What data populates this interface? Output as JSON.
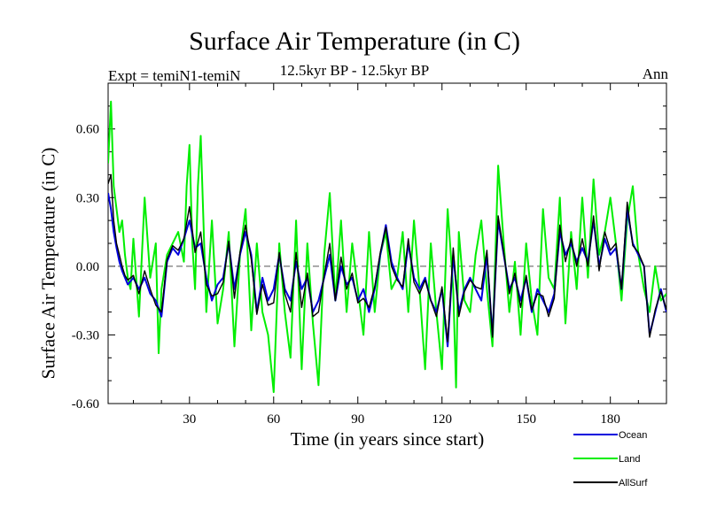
{
  "header": {
    "title": "Surface Air Temperature (in C)",
    "subtitle": "12.5kyr BP - 12.5kyr BP",
    "expt": "Expt = temiN1-temiN",
    "season": "Ann"
  },
  "chart_data": {
    "type": "line",
    "title": "Surface Air Temperature (in C)",
    "xlabel": "Time (in years since start)",
    "ylabel": "Surface Air Temperature (in C)",
    "xlim": [
      1,
      200
    ],
    "ylim": [
      -0.6,
      0.8
    ],
    "xticks": [
      30,
      60,
      90,
      120,
      150,
      180
    ],
    "xtick_labels": [
      "30",
      "60",
      "90",
      "120",
      "150",
      "180"
    ],
    "yticks": [
      -0.6,
      -0.3,
      0.0,
      0.3,
      0.6
    ],
    "ytick_labels": [
      "-0.60",
      "-0.30",
      "0.00",
      "0.30",
      "0.60"
    ],
    "zero_line": true,
    "legend_position": "bottom-right, below plot",
    "series": [
      {
        "name": "Land",
        "color": "#00ee00",
        "x": [
          1,
          2,
          3,
          4,
          5,
          6,
          7,
          8,
          9,
          10,
          12,
          14,
          16,
          18,
          19,
          20,
          22,
          24,
          26,
          28,
          29,
          30,
          31,
          32,
          33,
          34,
          36,
          38,
          40,
          42,
          44,
          46,
          48,
          50,
          52,
          54,
          56,
          58,
          60,
          62,
          64,
          66,
          68,
          70,
          72,
          74,
          76,
          78,
          80,
          82,
          84,
          86,
          88,
          90,
          92,
          94,
          96,
          98,
          100,
          102,
          104,
          106,
          108,
          110,
          112,
          114,
          116,
          118,
          120,
          122,
          124,
          125,
          126,
          128,
          130,
          132,
          134,
          136,
          138,
          140,
          142,
          144,
          146,
          148,
          150,
          152,
          154,
          156,
          158,
          160,
          162,
          164,
          166,
          168,
          170,
          172,
          174,
          176,
          178,
          180,
          182,
          184,
          186,
          188,
          190,
          192,
          194,
          196,
          198,
          200
        ],
        "values": [
          0.45,
          0.72,
          0.35,
          0.25,
          0.15,
          0.2,
          0.05,
          -0.05,
          -0.1,
          0.12,
          -0.22,
          0.3,
          -0.05,
          0.1,
          -0.38,
          -0.1,
          0.05,
          0.1,
          0.15,
          0.02,
          0.35,
          0.53,
          0.1,
          -0.1,
          0.35,
          0.57,
          -0.2,
          0.2,
          -0.25,
          -0.1,
          0.15,
          -0.35,
          0.05,
          0.25,
          -0.28,
          0.1,
          -0.2,
          -0.3,
          -0.55,
          0.1,
          -0.2,
          -0.4,
          0.2,
          -0.45,
          0.1,
          -0.25,
          -0.52,
          0.05,
          0.32,
          -0.15,
          0.2,
          -0.2,
          0.1,
          -0.1,
          -0.3,
          0.15,
          -0.2,
          0.05,
          0.15,
          -0.1,
          -0.05,
          0.15,
          -0.2,
          0.2,
          -0.1,
          -0.45,
          0.1,
          -0.2,
          -0.45,
          0.25,
          -0.1,
          -0.53,
          0.15,
          -0.15,
          -0.2,
          0.05,
          0.2,
          -0.1,
          -0.35,
          0.44,
          0.1,
          -0.2,
          0.02,
          -0.3,
          0.1,
          -0.15,
          -0.3,
          0.25,
          -0.05,
          -0.1,
          0.3,
          -0.25,
          0.15,
          -0.1,
          0.3,
          -0.05,
          0.38,
          0.05,
          0.15,
          0.3,
          0.1,
          -0.15,
          0.2,
          0.35,
          0.05,
          -0.1,
          -0.2,
          0.0,
          -0.15,
          -0.12
        ]
      },
      {
        "name": "Ocean",
        "color": "#0000dd",
        "x": [
          1,
          2,
          3,
          4,
          5,
          6,
          7,
          8,
          10,
          12,
          14,
          16,
          18,
          20,
          22,
          24,
          26,
          28,
          30,
          32,
          34,
          36,
          38,
          40,
          42,
          44,
          46,
          48,
          50,
          52,
          54,
          56,
          58,
          60,
          62,
          64,
          66,
          68,
          70,
          72,
          74,
          76,
          78,
          80,
          82,
          84,
          86,
          88,
          90,
          92,
          94,
          96,
          98,
          100,
          102,
          104,
          106,
          108,
          110,
          112,
          114,
          116,
          118,
          120,
          122,
          124,
          126,
          128,
          130,
          132,
          134,
          136,
          138,
          140,
          142,
          144,
          146,
          148,
          150,
          152,
          154,
          156,
          158,
          160,
          162,
          164,
          166,
          168,
          170,
          172,
          174,
          176,
          178,
          180,
          182,
          184,
          186,
          188,
          190,
          192,
          194,
          196,
          198,
          200
        ],
        "values": [
          0.32,
          0.25,
          0.15,
          0.08,
          0.02,
          -0.02,
          -0.05,
          -0.08,
          -0.05,
          -0.1,
          -0.05,
          -0.12,
          -0.15,
          -0.22,
          0.02,
          0.08,
          0.05,
          0.12,
          0.2,
          0.08,
          0.1,
          -0.05,
          -0.15,
          -0.08,
          -0.05,
          0.1,
          -0.1,
          0.05,
          0.15,
          0.05,
          -0.2,
          -0.05,
          -0.15,
          -0.1,
          0.05,
          -0.1,
          -0.15,
          0.02,
          -0.1,
          -0.05,
          -0.2,
          -0.15,
          -0.05,
          0.05,
          -0.15,
          0.0,
          -0.08,
          -0.05,
          -0.15,
          -0.1,
          -0.2,
          -0.1,
          0.05,
          0.18,
          0.02,
          -0.05,
          -0.1,
          0.1,
          -0.05,
          -0.1,
          -0.05,
          -0.15,
          -0.2,
          -0.1,
          -0.35,
          0.05,
          -0.2,
          -0.1,
          -0.05,
          -0.1,
          -0.15,
          0.05,
          -0.3,
          0.2,
          0.05,
          -0.1,
          -0.05,
          -0.15,
          -0.05,
          -0.2,
          -0.1,
          -0.15,
          -0.2,
          -0.12,
          0.15,
          0.05,
          0.1,
          0.02,
          0.08,
          0.02,
          0.2,
          0.0,
          0.12,
          0.05,
          0.08,
          -0.1,
          0.25,
          0.1,
          0.05,
          0.0,
          -0.3,
          -0.2,
          -0.1,
          -0.2
        ]
      },
      {
        "name": "AllSurf",
        "color": "#000000",
        "x": [
          1,
          2,
          3,
          4,
          5,
          6,
          7,
          8,
          10,
          12,
          14,
          16,
          18,
          20,
          22,
          24,
          26,
          28,
          30,
          32,
          34,
          36,
          38,
          40,
          42,
          44,
          46,
          48,
          50,
          52,
          54,
          56,
          58,
          60,
          62,
          64,
          66,
          68,
          70,
          72,
          74,
          76,
          78,
          80,
          82,
          84,
          86,
          88,
          90,
          92,
          94,
          96,
          98,
          100,
          102,
          104,
          106,
          108,
          110,
          112,
          114,
          116,
          118,
          120,
          122,
          124,
          126,
          128,
          130,
          132,
          134,
          136,
          138,
          140,
          142,
          144,
          146,
          148,
          150,
          152,
          154,
          156,
          158,
          160,
          162,
          164,
          166,
          168,
          170,
          172,
          174,
          176,
          178,
          180,
          182,
          184,
          186,
          188,
          190,
          192,
          194,
          196,
          198,
          200
        ],
        "values": [
          0.36,
          0.4,
          0.2,
          0.1,
          0.05,
          0.0,
          -0.04,
          -0.06,
          -0.04,
          -0.12,
          -0.02,
          -0.1,
          -0.17,
          -0.2,
          0.03,
          0.09,
          0.07,
          0.12,
          0.26,
          0.06,
          0.15,
          -0.08,
          -0.13,
          -0.12,
          -0.07,
          0.11,
          -0.14,
          0.06,
          0.18,
          0.03,
          -0.21,
          -0.08,
          -0.17,
          -0.16,
          0.06,
          -0.12,
          -0.2,
          0.06,
          -0.18,
          -0.03,
          -0.22,
          -0.2,
          -0.04,
          0.1,
          -0.15,
          0.04,
          -0.1,
          -0.03,
          -0.16,
          -0.14,
          -0.18,
          -0.09,
          0.06,
          0.17,
          0.0,
          -0.06,
          -0.09,
          0.12,
          -0.07,
          -0.12,
          -0.06,
          -0.15,
          -0.22,
          -0.09,
          -0.33,
          0.08,
          -0.22,
          -0.11,
          -0.06,
          -0.09,
          -0.1,
          0.07,
          -0.31,
          0.22,
          0.06,
          -0.12,
          -0.03,
          -0.18,
          -0.04,
          -0.19,
          -0.12,
          -0.13,
          -0.22,
          -0.14,
          0.18,
          0.02,
          0.12,
          0.0,
          0.12,
          0.0,
          0.22,
          -0.02,
          0.15,
          0.07,
          0.1,
          -0.1,
          0.28,
          0.09,
          0.06,
          0.0,
          -0.31,
          -0.19,
          -0.11,
          -0.19
        ]
      }
    ]
  }
}
